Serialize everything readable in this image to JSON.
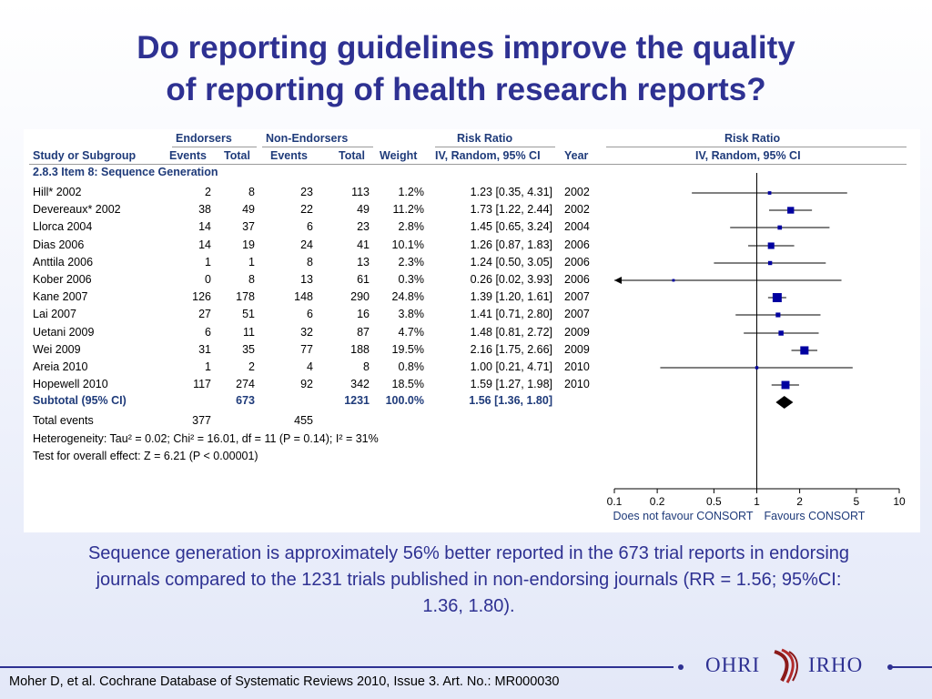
{
  "title_line1": "Do reporting guidelines improve the quality",
  "title_line2": "of reporting of health research reports?",
  "table": {
    "group_endorsers": "Endorsers",
    "group_non_endorsers": "Non-Endorsers",
    "group_risk_ratio": "Risk Ratio",
    "group_risk_ratio_plot": "Risk Ratio",
    "col_study": "Study or Subgroup",
    "col_events1": "Events",
    "col_total1": "Total",
    "col_events2": "Events",
    "col_total2": "Total",
    "col_weight": "Weight",
    "col_method": "IV, Random, 95% CI",
    "col_year": "Year",
    "col_method_plot": "IV, Random, 95% CI",
    "section": "2.8.3 Item 8: Sequence Generation",
    "rows": [
      {
        "study": "Hill* 2002",
        "e1": "2",
        "t1": "8",
        "e2": "23",
        "t2": "113",
        "w": "1.2%",
        "rr": "1.23 [0.35, 4.31]",
        "yr": "2002"
      },
      {
        "study": "Devereaux* 2002",
        "e1": "38",
        "t1": "49",
        "e2": "22",
        "t2": "49",
        "w": "11.2%",
        "rr": "1.73 [1.22, 2.44]",
        "yr": "2002"
      },
      {
        "study": "Llorca 2004",
        "e1": "14",
        "t1": "37",
        "e2": "6",
        "t2": "23",
        "w": "2.8%",
        "rr": "1.45 [0.65, 3.24]",
        "yr": "2004"
      },
      {
        "study": "Dias 2006",
        "e1": "14",
        "t1": "19",
        "e2": "24",
        "t2": "41",
        "w": "10.1%",
        "rr": "1.26 [0.87, 1.83]",
        "yr": "2006"
      },
      {
        "study": "Anttila 2006",
        "e1": "1",
        "t1": "1",
        "e2": "8",
        "t2": "13",
        "w": "2.3%",
        "rr": "1.24 [0.50, 3.05]",
        "yr": "2006"
      },
      {
        "study": "Kober 2006",
        "e1": "0",
        "t1": "8",
        "e2": "13",
        "t2": "61",
        "w": "0.3%",
        "rr": "0.26 [0.02, 3.93]",
        "yr": "2006"
      },
      {
        "study": "Kane 2007",
        "e1": "126",
        "t1": "178",
        "e2": "148",
        "t2": "290",
        "w": "24.8%",
        "rr": "1.39 [1.20, 1.61]",
        "yr": "2007"
      },
      {
        "study": "Lai 2007",
        "e1": "27",
        "t1": "51",
        "e2": "6",
        "t2": "16",
        "w": "3.8%",
        "rr": "1.41 [0.71, 2.80]",
        "yr": "2007"
      },
      {
        "study": "Uetani 2009",
        "e1": "6",
        "t1": "11",
        "e2": "32",
        "t2": "87",
        "w": "4.7%",
        "rr": "1.48 [0.81, 2.72]",
        "yr": "2009"
      },
      {
        "study": "Wei 2009",
        "e1": "31",
        "t1": "35",
        "e2": "77",
        "t2": "188",
        "w": "19.5%",
        "rr": "2.16 [1.75, 2.66]",
        "yr": "2009"
      },
      {
        "study": "Areia 2010",
        "e1": "1",
        "t1": "2",
        "e2": "4",
        "t2": "8",
        "w": "0.8%",
        "rr": "1.00 [0.21, 4.71]",
        "yr": "2010"
      },
      {
        "study": "Hopewell 2010",
        "e1": "117",
        "t1": "274",
        "e2": "92",
        "t2": "342",
        "w": "18.5%",
        "rr": "1.59 [1.27, 1.98]",
        "yr": "2010"
      }
    ],
    "subtotal": {
      "study": "Subtotal (95% CI)",
      "t1": "673",
      "t2": "1231",
      "w": "100.0%",
      "rr": "1.56 [1.36, 1.80]"
    },
    "total_events": {
      "label": "Total events",
      "e1": "377",
      "e2": "455"
    },
    "heterogeneity": "Heterogeneity: Tau² = 0.02; Chi² = 16.01, df = 11 (P = 0.14); I² = 31%",
    "overall_effect": "Test for overall effect: Z = 6.21 (P < 0.00001)"
  },
  "chart_data": {
    "type": "scatter",
    "scale": "log",
    "xlim": [
      0.1,
      10
    ],
    "ticks": [
      0.1,
      0.2,
      0.5,
      1,
      2,
      5,
      10
    ],
    "tick_labels": [
      "0.1",
      "0.2",
      "0.5",
      "1",
      "2",
      "5",
      "10"
    ],
    "xlabel_left": "Does not favour CONSORT",
    "xlabel_right": "Favours CONSORT",
    "reference_line": 1,
    "studies": [
      {
        "rr": 1.23,
        "lo": 0.35,
        "hi": 4.31,
        "weight": 1.2
      },
      {
        "rr": 1.73,
        "lo": 1.22,
        "hi": 2.44,
        "weight": 11.2
      },
      {
        "rr": 1.45,
        "lo": 0.65,
        "hi": 3.24,
        "weight": 2.8
      },
      {
        "rr": 1.26,
        "lo": 0.87,
        "hi": 1.83,
        "weight": 10.1
      },
      {
        "rr": 1.24,
        "lo": 0.5,
        "hi": 3.05,
        "weight": 2.3
      },
      {
        "rr": 0.26,
        "lo": 0.02,
        "hi": 3.93,
        "weight": 0.3
      },
      {
        "rr": 1.39,
        "lo": 1.2,
        "hi": 1.61,
        "weight": 24.8
      },
      {
        "rr": 1.41,
        "lo": 0.71,
        "hi": 2.8,
        "weight": 3.8
      },
      {
        "rr": 1.48,
        "lo": 0.81,
        "hi": 2.72,
        "weight": 4.7
      },
      {
        "rr": 2.16,
        "lo": 1.75,
        "hi": 2.66,
        "weight": 19.5
      },
      {
        "rr": 1.0,
        "lo": 0.21,
        "hi": 4.71,
        "weight": 0.8
      },
      {
        "rr": 1.59,
        "lo": 1.27,
        "hi": 1.98,
        "weight": 18.5
      }
    ],
    "pooled": {
      "rr": 1.56,
      "lo": 1.36,
      "hi": 1.8
    },
    "marker_color": "#0000a0"
  },
  "caption": "Sequence generation is approximately 56% better reported in the 673 trial reports in endorsing journals compared to the 1231 trials published in non-endorsing journals (RR = 1.56; 95%CI: 1.36, 1.80).",
  "logo": {
    "left": "OHRI",
    "right": "IRHO"
  },
  "citation": "Moher D, et al. Cochrane Database of Systematic Reviews 2010, Issue 3. Art. No.: MR000030"
}
